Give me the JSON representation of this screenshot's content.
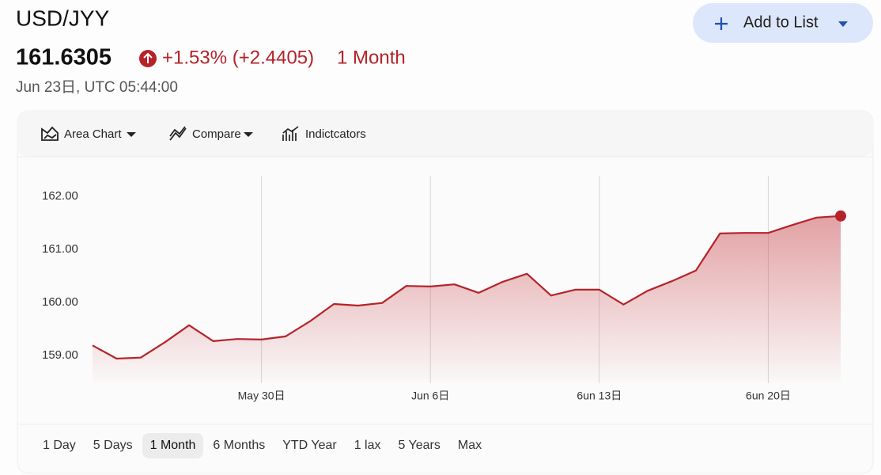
{
  "header": {
    "symbol": "USD/JYY",
    "price": "161.6305",
    "change": "+1.53% (+2.4405)",
    "period": "1 Month",
    "timestamp": "Jun 23日, UTC 05:44:00"
  },
  "add_button": "Add to List",
  "toolbar": [
    "Area Chart",
    "Compare",
    "Indictcators"
  ],
  "ranges": [
    "1 Day",
    "5 Days",
    "1 Month",
    "6 Months",
    "YTD Year",
    "1 lax",
    "5 Years",
    "Max"
  ],
  "selected_range": 2,
  "chart_data": {
    "type": "area",
    "color": "#b5232a",
    "x": [
      "May 23",
      "May 24",
      "May 25",
      "May 26",
      "May 27",
      "May 28",
      "May 29",
      "May 30",
      "May 31",
      "Jun 1",
      "Jun 2",
      "Jun 3",
      "Jun 4",
      "Jun 5",
      "Jun 6",
      "Jun 7",
      "Jun 8",
      "Jun 9",
      "Jun 10",
      "Jun 11",
      "Jun 12",
      "Jun 13",
      "Jun 14",
      "Jun 15",
      "Jun 16",
      "Jun 17",
      "Jun 18",
      "Jun 19",
      "Jun 20",
      "Jun 21",
      "Jun 22",
      "Jun 23"
    ],
    "values": [
      159.19,
      158.94,
      158.96,
      159.25,
      159.57,
      159.27,
      159.31,
      159.3,
      159.36,
      159.64,
      159.97,
      159.94,
      159.99,
      160.31,
      160.3,
      160.34,
      160.18,
      160.39,
      160.54,
      160.13,
      160.24,
      160.24,
      159.96,
      160.22,
      160.4,
      160.6,
      161.3,
      161.31,
      161.31,
      161.46,
      161.6,
      161.63
    ],
    "ylim": [
      158.5,
      162.5
    ],
    "yticks": [
      {
        "value": 159,
        "label": "159.00"
      },
      {
        "value": 160,
        "label": "160.00"
      },
      {
        "value": 161,
        "label": "161.00"
      },
      {
        "value": 162,
        "label": "162.00"
      }
    ],
    "xticks": [
      {
        "value": "May 30",
        "label": "May 30日"
      },
      {
        "value": "Jun 6",
        "label": "Jun 6日"
      },
      {
        "value": "Jun 13",
        "label": "6un 13日"
      },
      {
        "value": "Jun 20",
        "label": "6un 20日"
      }
    ],
    "grid": "x"
  }
}
